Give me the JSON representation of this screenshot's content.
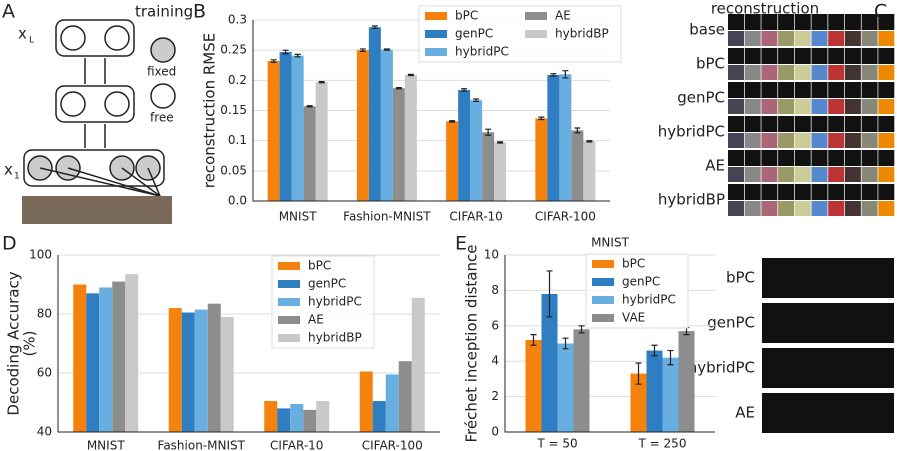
{
  "figure": {
    "panel_labels": [
      "A",
      "B",
      "C",
      "D",
      "E"
    ],
    "diagram": {
      "title": "training",
      "top_node": "x",
      "top_sub": "L",
      "bottom_node": "x",
      "bottom_sub": "1",
      "legend": [
        "fixed",
        "free"
      ]
    },
    "reconstruction": {
      "title": "reconstruction",
      "rows": [
        "base",
        "bPC",
        "genPC",
        "hybridPC",
        "AE",
        "hybridBP"
      ]
    },
    "samples": {
      "rows": [
        "bPC",
        "genPC",
        "hybridPC",
        "AE"
      ]
    }
  },
  "chart_data": [
    {
      "type": "bar",
      "ylabel": "reconstruction RMSE",
      "categories": [
        "MNIST",
        "Fashion-MNIST",
        "CIFAR-10",
        "CIFAR-100"
      ],
      "ylim": [
        0,
        0.3
      ],
      "yticks": [
        {
          "value": 0,
          "label": "0.0"
        },
        0.05,
        0.1,
        0.15,
        0.2,
        0.25,
        0.3
      ],
      "series": [
        {
          "name": "bPC",
          "color": "#f5820d",
          "values": [
            0.232,
            0.25,
            0.132,
            0.137
          ],
          "errors": [
            0.002,
            0.002,
            0.001,
            0.002
          ]
        },
        {
          "name": "genPC",
          "color": "#2f7ec1",
          "values": [
            0.247,
            0.288,
            0.184,
            0.209
          ],
          "errors": [
            0.003,
            0.002,
            0.002,
            0.002
          ]
        },
        {
          "name": "hybridPC",
          "color": "#68aee0",
          "values": [
            0.241,
            0.251,
            0.167,
            0.21
          ],
          "errors": [
            0.002,
            0.001,
            0.002,
            0.006
          ]
        },
        {
          "name": "AE",
          "color": "#8d8d8d",
          "values": [
            0.157,
            0.187,
            0.114,
            0.117
          ],
          "errors": [
            0.001,
            0.001,
            0.005,
            0.004
          ]
        },
        {
          "name": "hybridBP",
          "color": "#c9c9c9",
          "values": [
            0.197,
            0.209,
            0.097,
            0.099
          ],
          "errors": [
            0.001,
            0.001,
            0.001,
            0.001
          ]
        }
      ]
    },
    {
      "type": "bar",
      "ylabel": [
        "Decoding Accuracy",
        "(%)"
      ],
      "categories": [
        "MNIST",
        "Fashion-MNIST",
        "CIFAR-10",
        "CIFAR-100"
      ],
      "ylim": [
        40,
        100
      ],
      "yticks": [
        40,
        60,
        80,
        100
      ],
      "series": [
        {
          "name": "bPC",
          "color": "#f5820d",
          "values": [
            90,
            82,
            50.5,
            60.5
          ]
        },
        {
          "name": "genPC",
          "color": "#2f7ec1",
          "values": [
            87,
            80.5,
            48,
            50.5
          ]
        },
        {
          "name": "hybridPC",
          "color": "#68aee0",
          "values": [
            89,
            81.5,
            49.5,
            59.5
          ]
        },
        {
          "name": "AE",
          "color": "#8d8d8d",
          "values": [
            91,
            83.5,
            47.5,
            64
          ]
        },
        {
          "name": "hybridBP",
          "color": "#c9c9c9",
          "values": [
            93.5,
            79,
            50.5,
            85.5
          ]
        }
      ]
    },
    {
      "type": "bar",
      "title": "MNIST",
      "ylabel": "Fréchet inception distance",
      "categories": [
        "T = 50",
        "T = 250"
      ],
      "ylim": [
        0,
        10
      ],
      "yticks": [
        0,
        2,
        4,
        6,
        8,
        10
      ],
      "series": [
        {
          "name": "bPC",
          "color": "#f5820d",
          "values": [
            5.2,
            3.3
          ],
          "errors": [
            0.3,
            0.6
          ]
        },
        {
          "name": "genPC",
          "color": "#2f7ec1",
          "values": [
            7.8,
            4.6
          ],
          "errors": [
            1.3,
            0.3
          ]
        },
        {
          "name": "hybridPC",
          "color": "#68aee0",
          "values": [
            5.0,
            4.2
          ],
          "errors": [
            0.3,
            0.4
          ]
        },
        {
          "name": "VAE",
          "color": "#8d8d8d",
          "values": [
            5.8,
            5.7
          ],
          "errors": [
            0.2,
            0.2
          ]
        }
      ]
    }
  ]
}
